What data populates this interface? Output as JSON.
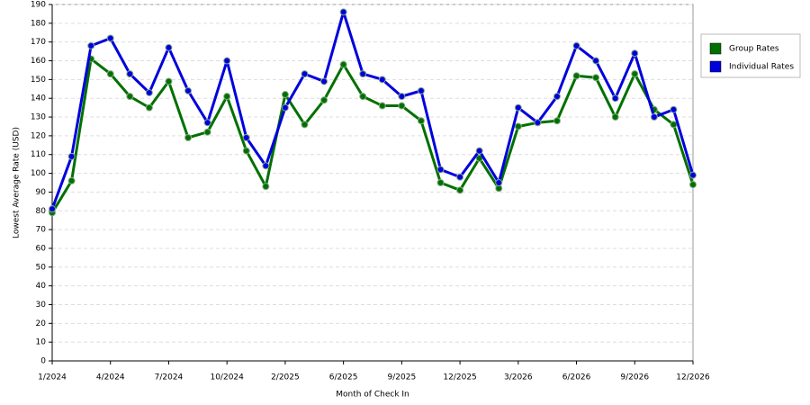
{
  "chart_data": {
    "type": "line",
    "x_label": "Month of Check In",
    "y_label": "Lowest Average Rate (USD)",
    "categories": [
      "1/2024",
      null,
      null,
      "4/2024",
      null,
      null,
      "7/2024",
      null,
      null,
      "10/2024",
      null,
      null,
      "2/2025",
      null,
      null,
      "6/2025",
      null,
      null,
      "9/2025",
      null,
      null,
      "12/2025",
      null,
      null,
      "3/2026",
      null,
      null,
      "6/2026",
      null,
      null,
      "9/2026",
      null,
      null,
      "12/2026"
    ],
    "series": [
      {
        "name": "Group Rates",
        "color": "#007000",
        "values": [
          79,
          96,
          161,
          153,
          141,
          135,
          149,
          119,
          122,
          141,
          112,
          93,
          142,
          126,
          139,
          158,
          141,
          136,
          136,
          128,
          95,
          91,
          108,
          92,
          125,
          127,
          128,
          152,
          151,
          130,
          153,
          134,
          126,
          94
        ]
      },
      {
        "name": "Individual Rates",
        "color": "#0000dd",
        "values": [
          81,
          109,
          168,
          172,
          153,
          143,
          167,
          144,
          127,
          160,
          119,
          104,
          135,
          153,
          149,
          186,
          153,
          150,
          141,
          144,
          102,
          98,
          112,
          95,
          135,
          127,
          141,
          168,
          160,
          140,
          164,
          130,
          134,
          99
        ]
      }
    ],
    "ylim": [
      0,
      190
    ],
    "yticks": [
      0,
      10,
      20,
      30,
      40,
      50,
      60,
      70,
      80,
      90,
      100,
      110,
      120,
      130,
      140,
      150,
      160,
      170,
      180,
      190
    ],
    "grid": true,
    "legend": "right"
  }
}
